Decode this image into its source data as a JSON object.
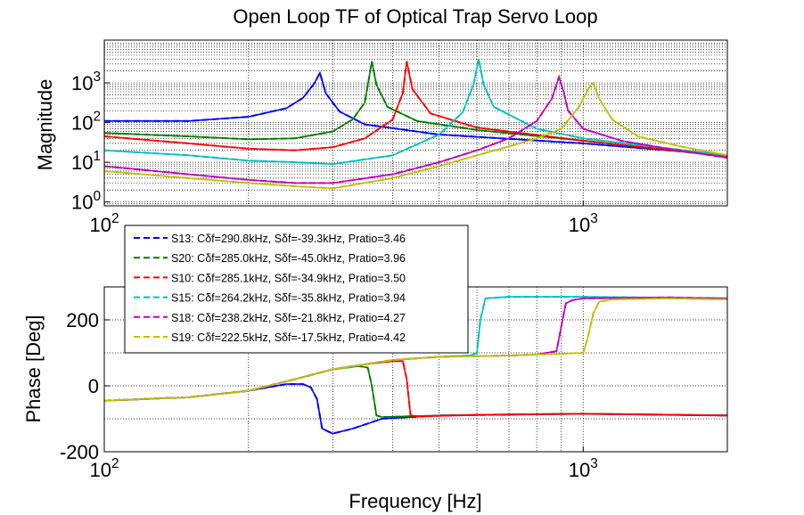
{
  "chart_data": {
    "type": "line",
    "title": "Open Loop TF of Optical Trap Servo Loop",
    "xlabel": "Frequency [Hz]",
    "xscale": "log",
    "xlim": [
      100,
      2000
    ],
    "x_ticks": [
      {
        "value": 100,
        "base": "10",
        "exp": "2"
      },
      {
        "value": 1000,
        "base": "10",
        "exp": "3"
      }
    ],
    "grid": true,
    "legend": {
      "position": "top-left of phase plot",
      "style": "dashed",
      "entries": [
        {
          "label": "S13: Cδf=290.8kHz, Sδf=-39.3kHz, Pratio=3.46",
          "color": "#0000ff"
        },
        {
          "label": "S20: Cδf=285.0kHz, Sδf=-45.0kHz, Pratio=3.96",
          "color": "#007f00"
        },
        {
          "label": "S10: Cδf=285.1kHz, Sδf=-34.9kHz, Pratio=3.50",
          "color": "#ff0000"
        },
        {
          "label": "S15: Cδf=264.2kHz, Sδf=-35.8kHz, Pratio=3.94",
          "color": "#00bfbf"
        },
        {
          "label": "S18: Cδf=238.2kHz, Sδf=-21.8kHz, Pratio=4.27",
          "color": "#bf00bf"
        },
        {
          "label": "S19: Cδf=222.5kHz, Sδf=-17.5kHz, Pratio=4.42",
          "color": "#bfbf00"
        }
      ]
    },
    "magnitude": {
      "ylabel": "Magnitude",
      "yscale": "log",
      "ylim": [
        0.8,
        12000
      ],
      "y_ticks": [
        {
          "value": 1,
          "base": "10",
          "exp": "0"
        },
        {
          "value": 10,
          "base": "10",
          "exp": "1"
        },
        {
          "value": 100,
          "base": "10",
          "exp": "2"
        },
        {
          "value": 1000,
          "base": "10",
          "exp": "3"
        }
      ],
      "series": [
        {
          "name": "S13",
          "color": "#0000ff",
          "x": [
            100,
            150,
            200,
            240,
            260,
            275,
            282,
            290,
            310,
            350,
            500,
            1000,
            2000
          ],
          "y": [
            110,
            110,
            140,
            230,
            420,
            1000,
            1800,
            550,
            190,
            90,
            50,
            30,
            15
          ]
        },
        {
          "name": "S20",
          "color": "#007f00",
          "x": [
            100,
            150,
            200,
            250,
            300,
            330,
            350,
            362,
            370,
            390,
            450,
            600,
            1000,
            2000
          ],
          "y": [
            55,
            45,
            38,
            40,
            60,
            120,
            320,
            3500,
            900,
            250,
            110,
            65,
            35,
            14
          ]
        },
        {
          "name": "S10",
          "color": "#ff0000",
          "x": [
            100,
            150,
            200,
            250,
            300,
            350,
            400,
            420,
            428,
            440,
            480,
            600,
            1000,
            2000
          ],
          "y": [
            45,
            30,
            22,
            20,
            24,
            40,
            120,
            550,
            3500,
            700,
            170,
            75,
            35,
            14
          ]
        },
        {
          "name": "S15",
          "color": "#00bfbf",
          "x": [
            100,
            150,
            200,
            250,
            300,
            400,
            500,
            560,
            590,
            605,
            620,
            650,
            800,
            1000,
            2000
          ],
          "y": [
            20,
            15,
            11,
            10,
            9,
            15,
            50,
            180,
            900,
            4000,
            900,
            250,
            70,
            40,
            15
          ]
        },
        {
          "name": "S18",
          "color": "#bf00bf",
          "x": [
            100,
            150,
            200,
            250,
            300,
            400,
            500,
            600,
            700,
            800,
            860,
            890,
            910,
            930,
            1000,
            1200,
            1500,
            2000
          ],
          "y": [
            8,
            5,
            3.6,
            3,
            3,
            5,
            10,
            20,
            40,
            110,
            400,
            1400,
            600,
            200,
            70,
            35,
            22,
            13
          ]
        },
        {
          "name": "S19",
          "color": "#bfbf00",
          "x": [
            100,
            150,
            200,
            250,
            300,
            400,
            500,
            600,
            700,
            800,
            900,
            980,
            1030,
            1050,
            1080,
            1150,
            1300,
            1600,
            2000
          ],
          "y": [
            6,
            4,
            3,
            2.5,
            2.2,
            4,
            8,
            15,
            25,
            40,
            70,
            250,
            800,
            1000,
            400,
            120,
            45,
            25,
            15
          ]
        }
      ]
    },
    "phase": {
      "ylabel": "Phase [Deg]",
      "ylim": [
        -200,
        300
      ],
      "y_ticks": [
        {
          "value": -200,
          "label": "-200"
        },
        {
          "value": 0,
          "label": "0"
        },
        {
          "value": 200,
          "label": "200"
        }
      ],
      "series": [
        {
          "name": "S13",
          "color": "#0000ff",
          "x": [
            100,
            150,
            200,
            240,
            260,
            270,
            278,
            285,
            300,
            330,
            380,
            500,
            1000,
            2000
          ],
          "y": [
            -45,
            -35,
            -15,
            5,
            5,
            -5,
            -40,
            -130,
            -145,
            -130,
            -100,
            -90,
            -85,
            -90
          ]
        },
        {
          "name": "S20",
          "color": "#007f00",
          "x": [
            100,
            150,
            200,
            250,
            300,
            340,
            355,
            362,
            370,
            380,
            420,
            600,
            1000,
            2000
          ],
          "y": [
            -45,
            -35,
            -15,
            20,
            50,
            60,
            55,
            0,
            -90,
            -95,
            -93,
            -88,
            -85,
            -90
          ]
        },
        {
          "name": "S10",
          "color": "#ff0000",
          "x": [
            100,
            150,
            200,
            250,
            300,
            350,
            400,
            420,
            428,
            436,
            450,
            600,
            1000,
            2000
          ],
          "y": [
            -45,
            -35,
            -15,
            20,
            50,
            65,
            75,
            75,
            20,
            -90,
            -93,
            -88,
            -85,
            -90
          ]
        },
        {
          "name": "S15",
          "color": "#00bfbf",
          "x": [
            100,
            150,
            200,
            250,
            300,
            400,
            500,
            580,
            600,
            610,
            625,
            700,
            1000,
            2000
          ],
          "y": [
            -45,
            -35,
            -15,
            20,
            50,
            78,
            88,
            92,
            100,
            200,
            265,
            270,
            270,
            265
          ]
        },
        {
          "name": "S18",
          "color": "#bf00bf",
          "x": [
            100,
            150,
            200,
            250,
            300,
            400,
            500,
            600,
            700,
            800,
            880,
            900,
            920,
            950,
            1000,
            1500,
            2000
          ],
          "y": [
            -45,
            -35,
            -15,
            20,
            50,
            78,
            88,
            90,
            92,
            95,
            105,
            180,
            250,
            260,
            265,
            268,
            265
          ]
        },
        {
          "name": "S19",
          "color": "#bfbf00",
          "x": [
            100,
            150,
            200,
            250,
            300,
            400,
            500,
            600,
            700,
            800,
            900,
            1000,
            1020,
            1050,
            1080,
            1150,
            1500,
            2000
          ],
          "y": [
            -45,
            -35,
            -15,
            20,
            50,
            78,
            88,
            90,
            92,
            95,
            97,
            100,
            140,
            220,
            255,
            262,
            265,
            262
          ]
        }
      ]
    }
  }
}
